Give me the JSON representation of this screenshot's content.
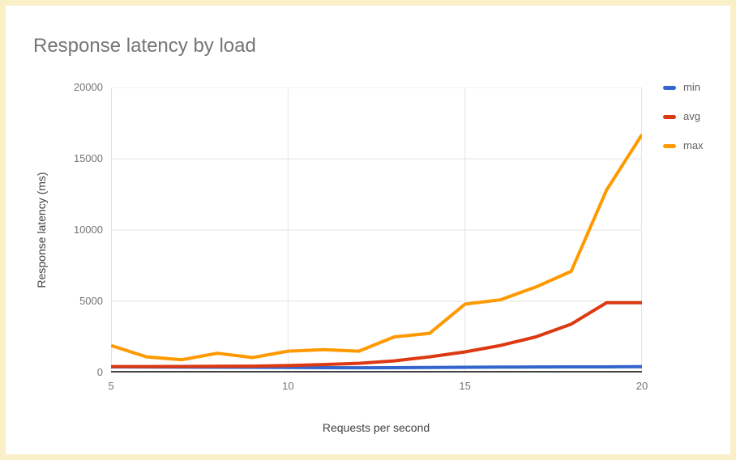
{
  "page": {
    "frame_color": "#faf0c8",
    "card_color": "#ffffff"
  },
  "chart_data": {
    "type": "line",
    "title": "Response latency by load",
    "xlabel": "Requests per second",
    "ylabel": "Response latency (ms)",
    "xlim": [
      5,
      20
    ],
    "ylim": [
      0,
      20000
    ],
    "x_ticks": [
      5,
      10,
      15,
      20
    ],
    "y_ticks": [
      0,
      5000,
      10000,
      15000,
      20000
    ],
    "grid": true,
    "legend_position": "right",
    "x": [
      5,
      6,
      7,
      8,
      9,
      10,
      11,
      12,
      13,
      14,
      15,
      16,
      17,
      18,
      19,
      20
    ],
    "series": [
      {
        "name": "min",
        "color": "#3366cc",
        "values": [
          400,
          390,
          380,
          375,
          370,
          350,
          340,
          335,
          340,
          350,
          370,
          380,
          390,
          395,
          400,
          410
        ]
      },
      {
        "name": "avg",
        "color": "#dc3912",
        "values": [
          420,
          420,
          425,
          435,
          450,
          490,
          560,
          650,
          820,
          1100,
          1450,
          1900,
          2500,
          3400,
          4900,
          4900
        ]
      },
      {
        "name": "max",
        "color": "#ff9900",
        "values": [
          1900,
          1100,
          900,
          1350,
          1050,
          1500,
          1600,
          1500,
          2500,
          2750,
          4800,
          5100,
          6000,
          7100,
          12800,
          16700
        ]
      }
    ],
    "style": {
      "gridline_color": "#e3e3e3",
      "axis_line_color": "#424242",
      "tick_label_color": "#757575",
      "axis_title_color": "#424242",
      "legend_label_color": "#616161",
      "title_color": "#757575"
    }
  }
}
